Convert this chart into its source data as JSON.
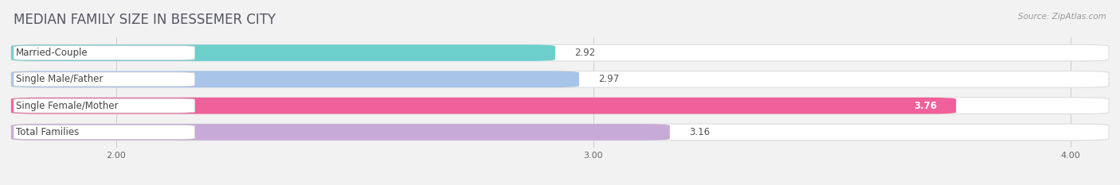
{
  "title": "MEDIAN FAMILY SIZE IN BESSEMER CITY",
  "source": "Source: ZipAtlas.com",
  "categories": [
    "Married-Couple",
    "Single Male/Father",
    "Single Female/Mother",
    "Total Families"
  ],
  "values": [
    2.92,
    2.97,
    3.76,
    3.16
  ],
  "bar_colors": [
    "#6dcfcc",
    "#a8c4e8",
    "#f0609a",
    "#c8aad8"
  ],
  "xlim": [
    1.78,
    4.08
  ],
  "xticks": [
    2.0,
    3.0,
    4.0
  ],
  "xtick_labels": [
    "2.00",
    "3.00",
    "4.00"
  ],
  "bar_height": 0.62,
  "label_fontsize": 8.5,
  "value_fontsize": 8.5,
  "title_fontsize": 12,
  "source_fontsize": 7.5,
  "background_color": "#f2f2f2",
  "bar_bg_color": "#ffffff",
  "title_color": "#555566",
  "label_color": "#444444",
  "value_color_dark": "#555555",
  "value_color_light": "#ffffff",
  "grid_color": "#cccccc",
  "rounding_size": 0.06
}
